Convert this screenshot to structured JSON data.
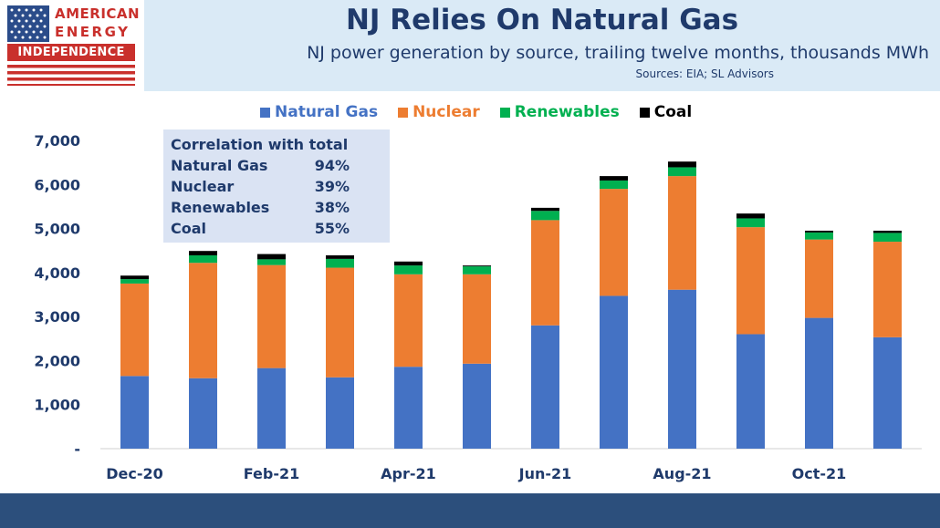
{
  "logo": {
    "line1": "AMERICAN",
    "line2": "ENERGY",
    "line3": "INDEPENDENCE",
    "colors": {
      "red": "#c9302c",
      "blue": "#2b4c8a"
    }
  },
  "header": {
    "title": "NJ Relies On Natural Gas",
    "subtitle": "NJ power generation by source, trailing twelve months, thousands MWh",
    "sources": "Sources: EIA; SL Advisors"
  },
  "correlation_box": {
    "title": "Correlation with total",
    "rows": [
      {
        "label": "Natural Gas",
        "value": "94%"
      },
      {
        "label": "Nuclear",
        "value": "39%"
      },
      {
        "label": "Renewables",
        "value": "38%"
      },
      {
        "label": "Coal",
        "value": "55%"
      }
    ]
  },
  "chart_data": {
    "type": "bar",
    "stacked": true,
    "categories": [
      "Dec-20",
      "Jan-21",
      "Feb-21",
      "Mar-21",
      "Apr-21",
      "May-21",
      "Jun-21",
      "Jul-21",
      "Aug-21",
      "Sep-21",
      "Oct-21",
      "Nov-21"
    ],
    "x_tick_labels": [
      "Dec-20",
      "",
      "Feb-21",
      "",
      "Apr-21",
      "",
      "Jun-21",
      "",
      "Aug-21",
      "",
      "Oct-21",
      ""
    ],
    "series": [
      {
        "name": "Natural Gas",
        "color": "#4472c4",
        "values": [
          1650,
          1600,
          1830,
          1620,
          1860,
          1930,
          2800,
          3470,
          3610,
          2600,
          2970,
          2530
        ]
      },
      {
        "name": "Nuclear",
        "color": "#ed7d31",
        "values": [
          2100,
          2620,
          2340,
          2490,
          2100,
          2030,
          2390,
          2430,
          2580,
          2430,
          1780,
          2170
        ]
      },
      {
        "name": "Renewables",
        "color": "#00b050",
        "values": [
          100,
          170,
          130,
          200,
          200,
          180,
          210,
          190,
          200,
          200,
          160,
          200
        ]
      },
      {
        "name": "Coal",
        "color": "#000000",
        "values": [
          80,
          100,
          120,
          80,
          90,
          20,
          70,
          100,
          130,
          110,
          40,
          50
        ]
      }
    ],
    "y_ticks": [
      "-",
      "1,000",
      "2,000",
      "3,000",
      "4,000",
      "5,000",
      "6,000",
      "7,000"
    ],
    "ylim": [
      0,
      7000
    ],
    "legend_position": "top-center",
    "grid": false
  }
}
